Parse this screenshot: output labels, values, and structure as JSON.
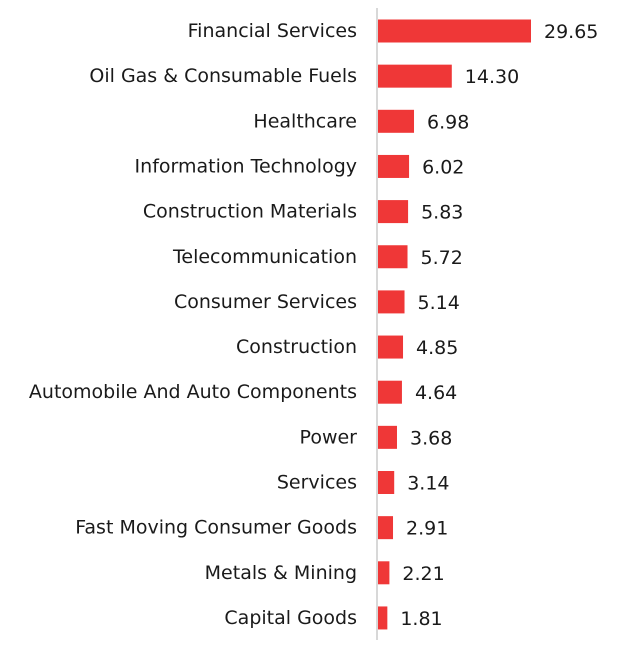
{
  "chart_data": {
    "type": "bar",
    "orientation": "horizontal",
    "categories": [
      "Financial Services",
      "Oil Gas & Consumable Fuels",
      "Healthcare",
      "Information Technology",
      "Construction Materials",
      "Telecommunication",
      "Consumer Services",
      "Construction",
      "Automobile And Auto Components",
      "Power",
      "Services",
      "Fast Moving Consumer Goods",
      "Metals & Mining",
      "Capital Goods"
    ],
    "values": [
      29.65,
      14.3,
      6.98,
      6.02,
      5.83,
      5.72,
      5.14,
      4.85,
      4.64,
      3.68,
      3.14,
      2.91,
      2.21,
      1.81
    ],
    "value_labels": [
      "29.65",
      "14.30",
      "6.98",
      "6.02",
      "5.83",
      "5.72",
      "5.14",
      "4.85",
      "4.64",
      "3.68",
      "3.14",
      "2.91",
      "2.21",
      "1.81"
    ],
    "xlim": [
      0,
      30
    ],
    "grid": false,
    "legend": "none",
    "bar_color": "#ef3737",
    "axis_color": "#cccccc",
    "text_color": "#1a1a1a"
  }
}
